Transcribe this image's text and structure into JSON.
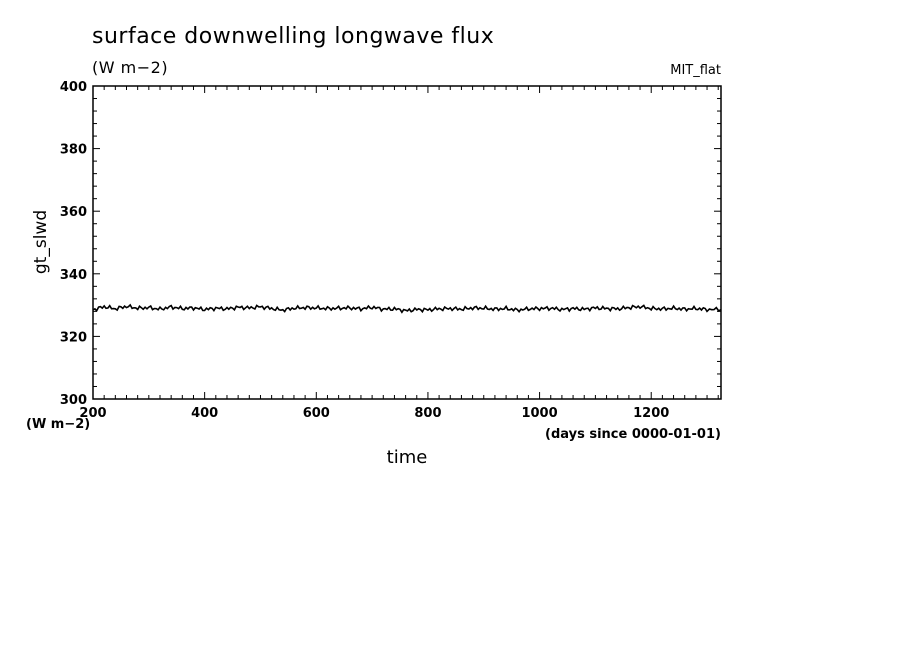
{
  "header": {
    "title": "surface downwelling longwave flux",
    "units": "(W m−2)",
    "model": "MIT_flat"
  },
  "chart_data": {
    "type": "line",
    "xlabel": "time",
    "xunits": "(days since 0000-01-01)",
    "ylabel": "gt_slwd",
    "yunits": "(W m−2)",
    "xlim": [
      200,
      1325
    ],
    "ylim": [
      300,
      400
    ],
    "xticks": [
      200,
      400,
      600,
      800,
      1000,
      1200
    ],
    "yticks": [
      300,
      320,
      340,
      360,
      380,
      400
    ],
    "grid": false,
    "color": "#000000",
    "series": [
      {
        "x": [
          200,
          220,
          240,
          260,
          280,
          300,
          320,
          340,
          360,
          380,
          400,
          420,
          440,
          460,
          480,
          500,
          520,
          540,
          560,
          580,
          600,
          620,
          640,
          660,
          680,
          700,
          720,
          740,
          760,
          780,
          800,
          820,
          840,
          860,
          880,
          900,
          920,
          940,
          960,
          980,
          1000,
          1020,
          1040,
          1060,
          1080,
          1100,
          1120,
          1140,
          1160,
          1180,
          1200,
          1220,
          1240,
          1260,
          1280,
          1300,
          1325
        ],
        "y": [
          328.5,
          329.5,
          328.8,
          329.6,
          329.0,
          329.2,
          328.7,
          329.4,
          328.9,
          329.1,
          328.6,
          329.0,
          328.8,
          329.3,
          329.1,
          329.5,
          328.9,
          328.4,
          329.0,
          329.2,
          329.1,
          328.9,
          329.0,
          329.1,
          328.8,
          329.3,
          328.7,
          328.8,
          328.2,
          328.6,
          328.5,
          328.8,
          328.9,
          328.7,
          329.1,
          329.0,
          328.7,
          328.9,
          328.4,
          328.8,
          328.9,
          329.0,
          328.6,
          328.9,
          328.7,
          329.1,
          328.9,
          328.8,
          329.2,
          329.5,
          328.9,
          328.8,
          329.0,
          328.7,
          328.9,
          328.6,
          328.6
        ]
      }
    ]
  }
}
